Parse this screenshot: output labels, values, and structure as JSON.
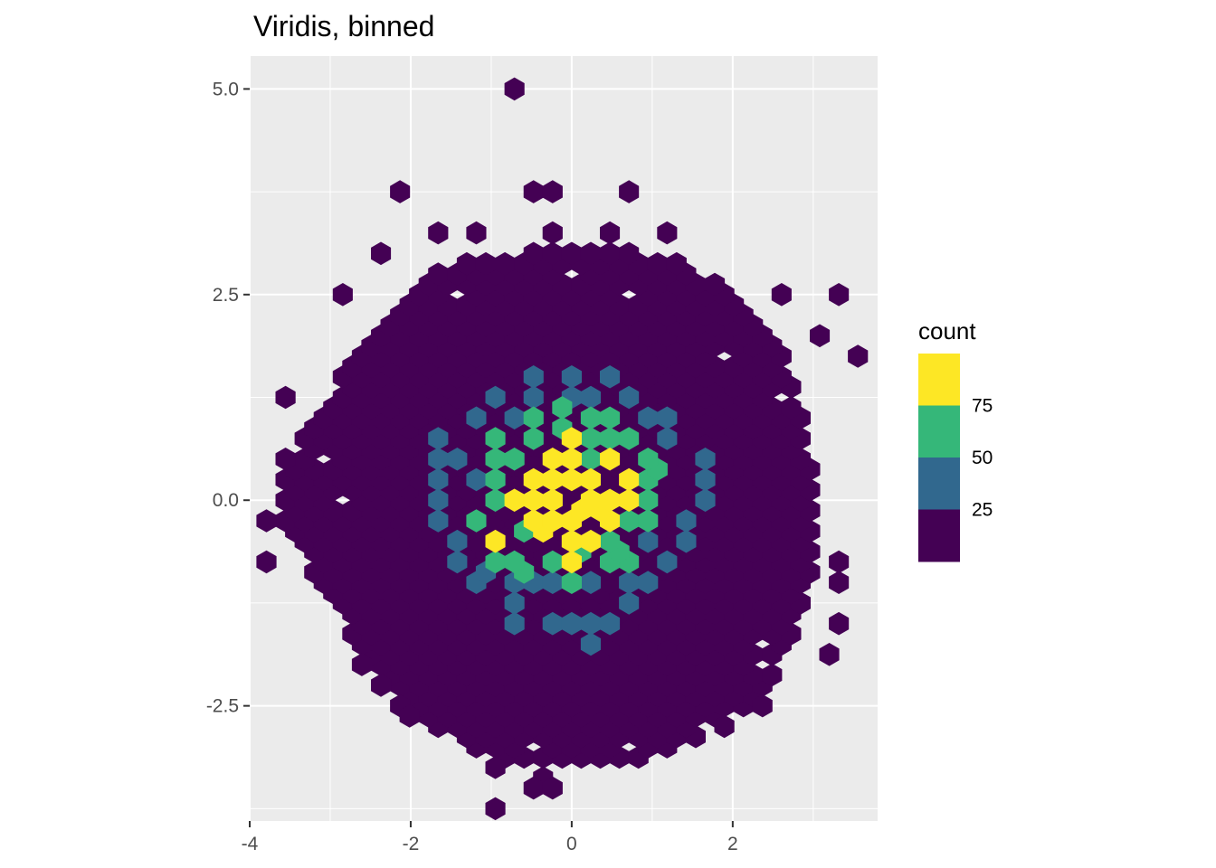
{
  "chart_data": {
    "type": "heatmap",
    "title": "Viridis, binned",
    "xlabel": "",
    "ylabel": "",
    "xlim": [
      -4.0,
      3.8
    ],
    "ylim": [
      -3.9,
      5.4
    ],
    "x_ticks": [
      -4,
      -2,
      0,
      2
    ],
    "x_tick_labels": [
      "-4",
      "-2",
      "0",
      "2"
    ],
    "y_ticks": [
      -2.5,
      0.0,
      2.5,
      5.0
    ],
    "y_tick_labels": [
      "-2.5",
      "0.0",
      "2.5",
      "5.0"
    ],
    "grid": true,
    "legend": {
      "title": "count",
      "position": "right",
      "bins": [
        {
          "range": "<25",
          "color": "#440154"
        },
        {
          "range": "25-50",
          "color": "#31688E"
        },
        {
          "range": "50-75",
          "color": "#35B779"
        },
        {
          "range": ">75",
          "color": "#FDE725"
        }
      ],
      "break_labels": [
        "25",
        "50",
        "75"
      ]
    },
    "bin_width": 0.237,
    "row_height": 0.125,
    "background_shape": [
      [
        -3.7,
        -0.3
      ],
      [
        -3.5,
        0.5
      ],
      [
        -3.0,
        1.3
      ],
      [
        -2.6,
        2.0
      ],
      [
        -2.0,
        2.6
      ],
      [
        -1.3,
        3.0
      ],
      [
        -0.5,
        3.0
      ],
      [
        0.4,
        3.1
      ],
      [
        1.3,
        2.9
      ],
      [
        2.0,
        2.5
      ],
      [
        2.6,
        1.8
      ],
      [
        2.9,
        1.1
      ],
      [
        3.0,
        0.2
      ],
      [
        3.0,
        -0.8
      ],
      [
        2.8,
        -1.6
      ],
      [
        2.5,
        -2.2
      ],
      [
        1.9,
        -2.7
      ],
      [
        1.1,
        -3.1
      ],
      [
        0.2,
        -3.2
      ],
      [
        -0.7,
        -3.2
      ],
      [
        -1.5,
        -2.9
      ],
      [
        -2.2,
        -2.4
      ],
      [
        -2.7,
        -1.7
      ],
      [
        -3.1,
        -1.0
      ]
    ],
    "holes": [
      [
        -1.4,
        2.5
      ],
      [
        -0.1,
        2.75
      ],
      [
        0.7,
        2.5
      ],
      [
        1.8,
        1.7
      ],
      [
        2.5,
        1.25
      ],
      [
        -3.1,
        0.5
      ],
      [
        -2.8,
        0.0
      ],
      [
        1.65,
        0.25
      ],
      [
        2.4,
        -1.75
      ],
      [
        2.4,
        -2.0
      ],
      [
        -1.8,
        -2.75
      ],
      [
        0.7,
        -3.0
      ],
      [
        1.6,
        -2.75
      ],
      [
        -0.5,
        -3.0
      ],
      [
        -2.6,
        -2.0
      ]
    ],
    "isolated": [
      [
        -0.7,
        4.95
      ],
      [
        -0.55,
        3.7
      ],
      [
        -0.3,
        3.7
      ],
      [
        0.6,
        3.7
      ],
      [
        -2.25,
        3.7
      ],
      [
        -1.75,
        3.2
      ],
      [
        -1.25,
        3.2
      ],
      [
        -0.35,
        3.2
      ],
      [
        0.45,
        3.2
      ],
      [
        1.1,
        3.2
      ],
      [
        -2.35,
        2.95
      ],
      [
        -2.85,
        2.45
      ],
      [
        2.6,
        2.45
      ],
      [
        3.35,
        2.45
      ],
      [
        3.05,
        1.95
      ],
      [
        3.45,
        1.7
      ],
      [
        -3.45,
        1.2
      ],
      [
        -3.15,
        0.7
      ],
      [
        -3.55,
        0.45
      ],
      [
        -3.7,
        -0.3
      ],
      [
        -3.7,
        -0.8
      ],
      [
        3.2,
        -0.75
      ],
      [
        3.25,
        -1.05
      ],
      [
        -2.55,
        -1.8
      ],
      [
        -2.6,
        -2.0
      ],
      [
        3.3,
        -1.55
      ],
      [
        3.2,
        -1.85
      ],
      [
        2.55,
        -1.75
      ],
      [
        2.35,
        -2.2
      ],
      [
        -2.2,
        -2.45
      ],
      [
        2.4,
        -2.55
      ],
      [
        -1.75,
        -2.75
      ],
      [
        -1.05,
        -3.3
      ],
      [
        -0.4,
        -3.35
      ],
      [
        -0.45,
        -3.55
      ],
      [
        -0.2,
        -3.55
      ],
      [
        -0.85,
        -3.8
      ],
      [
        0.05,
        -3.0
      ],
      [
        0.55,
        -3.0
      ],
      [
        1.2,
        -3.0
      ],
      [
        1.85,
        -2.75
      ],
      [
        2.0,
        -2.35
      ],
      [
        -1.5,
        -2.4
      ],
      [
        -2.35,
        -2.3
      ],
      [
        -1.95,
        -2.6
      ]
    ],
    "cells_25_50": [
      [
        -0.4,
        1.55
      ],
      [
        0.1,
        1.55
      ],
      [
        0.4,
        1.55
      ],
      [
        -0.5,
        1.3
      ],
      [
        0.3,
        1.3
      ],
      [
        0.8,
        1.3
      ],
      [
        -1.0,
        1.2
      ],
      [
        -1.25,
        0.95
      ],
      [
        1.1,
        0.95
      ],
      [
        -1.55,
        0.7
      ],
      [
        1.3,
        0.7
      ],
      [
        -1.6,
        0.45
      ],
      [
        1.55,
        0.45
      ],
      [
        1.7,
        0.5
      ],
      [
        -1.6,
        0.2
      ],
      [
        1.55,
        0.2
      ],
      [
        -1.6,
        -0.05
      ],
      [
        1.6,
        -0.05
      ],
      [
        -1.6,
        -0.3
      ],
      [
        1.45,
        -0.3
      ],
      [
        -1.35,
        -0.55
      ],
      [
        1.35,
        -0.55
      ],
      [
        -1.35,
        -0.8
      ],
      [
        1.2,
        -0.8
      ],
      [
        -1.1,
        -1.05
      ],
      [
        0.95,
        -1.05
      ],
      [
        -0.8,
        -1.3
      ],
      [
        0.8,
        -1.3
      ],
      [
        -0.6,
        -1.55
      ],
      [
        -0.3,
        -1.55
      ],
      [
        0.0,
        -1.45
      ],
      [
        0.35,
        -1.5
      ],
      [
        0.55,
        -1.55
      ],
      [
        -0.7,
        -1.5
      ],
      [
        0.15,
        -1.8
      ],
      [
        -0.2,
        -1.05
      ],
      [
        0.3,
        -1.05
      ],
      [
        0.6,
        -1.05
      ],
      [
        -0.5,
        -1.05
      ],
      [
        -0.8,
        -1.05
      ],
      [
        1.05,
        -0.55
      ],
      [
        1.05,
        0.2
      ],
      [
        0.85,
        0.95
      ],
      [
        -0.8,
        0.95
      ],
      [
        -1.3,
        0.2
      ],
      [
        -1.3,
        -0.3
      ],
      [
        -1.45,
        0.45
      ],
      [
        -1.15,
        -0.85
      ],
      [
        -0.05,
        1.2
      ],
      [
        0.95,
        0.45
      ],
      [
        -1.0,
        0.7
      ]
    ],
    "cells_50_75": [
      [
        -0.5,
        0.95
      ],
      [
        -0.15,
        0.85
      ],
      [
        0.2,
        1.05
      ],
      [
        0.5,
        0.95
      ],
      [
        0.75,
        0.7
      ],
      [
        -0.85,
        0.75
      ],
      [
        -1.0,
        0.45
      ],
      [
        -0.95,
        0.2
      ],
      [
        -0.9,
        -0.05
      ],
      [
        -1.3,
        -0.25
      ],
      [
        -0.85,
        -0.55
      ],
      [
        -0.6,
        -0.7
      ],
      [
        -0.2,
        -0.75
      ],
      [
        -0.05,
        -1.05
      ],
      [
        -0.9,
        -0.8
      ],
      [
        -0.5,
        -0.85
      ],
      [
        0.4,
        -0.55
      ],
      [
        0.65,
        -0.6
      ],
      [
        0.9,
        -0.3
      ],
      [
        0.95,
        0.05
      ],
      [
        1.05,
        0.35
      ],
      [
        0.85,
        0.45
      ],
      [
        0.4,
        0.75
      ],
      [
        0.6,
        -0.3
      ],
      [
        0.2,
        -0.6
      ],
      [
        -0.3,
        0.55
      ],
      [
        0.3,
        0.5
      ],
      [
        -0.75,
        0.5
      ],
      [
        0.75,
        -0.8
      ],
      [
        0.45,
        -0.8
      ],
      [
        -0.1,
        1.15
      ],
      [
        0.15,
        0.75
      ],
      [
        -0.55,
        0.7
      ],
      [
        -0.7,
        -0.35
      ],
      [
        0.85,
        0.2
      ]
    ],
    "cells_75_plus": [
      [
        -0.1,
        0.75
      ],
      [
        -0.1,
        0.5
      ],
      [
        0.1,
        0.3
      ],
      [
        0.35,
        0.2
      ],
      [
        0.45,
        0.45
      ],
      [
        0.6,
        0.3
      ],
      [
        0.65,
        0.05
      ],
      [
        0.8,
        -0.05
      ],
      [
        0.55,
        -0.05
      ],
      [
        0.3,
        -0.1
      ],
      [
        0.05,
        -0.1
      ],
      [
        -0.2,
        0.05
      ],
      [
        -0.4,
        0.2
      ],
      [
        -0.55,
        0.05
      ],
      [
        -0.7,
        -0.05
      ],
      [
        -0.55,
        -0.3
      ],
      [
        -0.3,
        -0.2
      ],
      [
        0.0,
        -0.3
      ],
      [
        -0.1,
        -0.55
      ],
      [
        0.15,
        -0.55
      ],
      [
        0.1,
        -0.8
      ],
      [
        -0.95,
        -0.45
      ],
      [
        -0.35,
        0.45
      ],
      [
        -0.25,
        -0.4
      ],
      [
        0.2,
        0.0
      ],
      [
        0.4,
        -0.3
      ],
      [
        0.55,
        0.55
      ],
      [
        -0.15,
        0.3
      ]
    ]
  }
}
